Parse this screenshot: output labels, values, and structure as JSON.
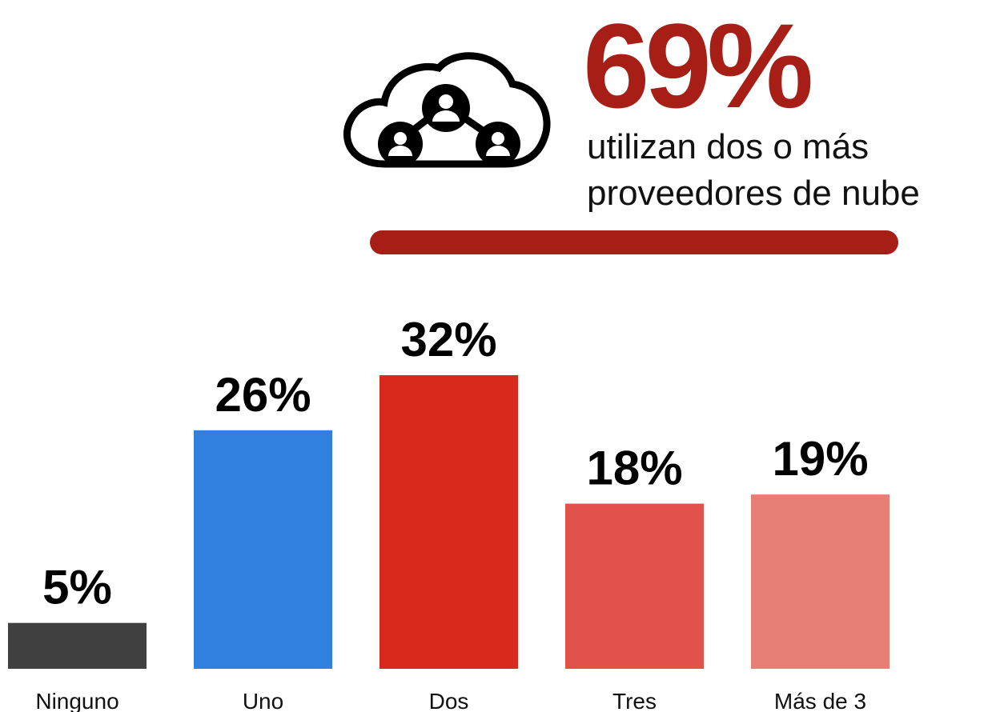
{
  "chart_data": {
    "type": "bar",
    "highlight": "69%",
    "highlight_text": [
      "utilizan dos o más",
      "proveedores de nube"
    ],
    "categories": [
      "Ninguno",
      "Uno",
      "Dos",
      "Tres",
      "Más de 3"
    ],
    "values": [
      5,
      26,
      32,
      18,
      19
    ],
    "value_labels": [
      "5%",
      "26%",
      "32%",
      "18%",
      "19%"
    ],
    "colors": [
      "#404040",
      "#3080e0",
      "#d9291c",
      "#e0524a",
      "#e87f76"
    ]
  }
}
